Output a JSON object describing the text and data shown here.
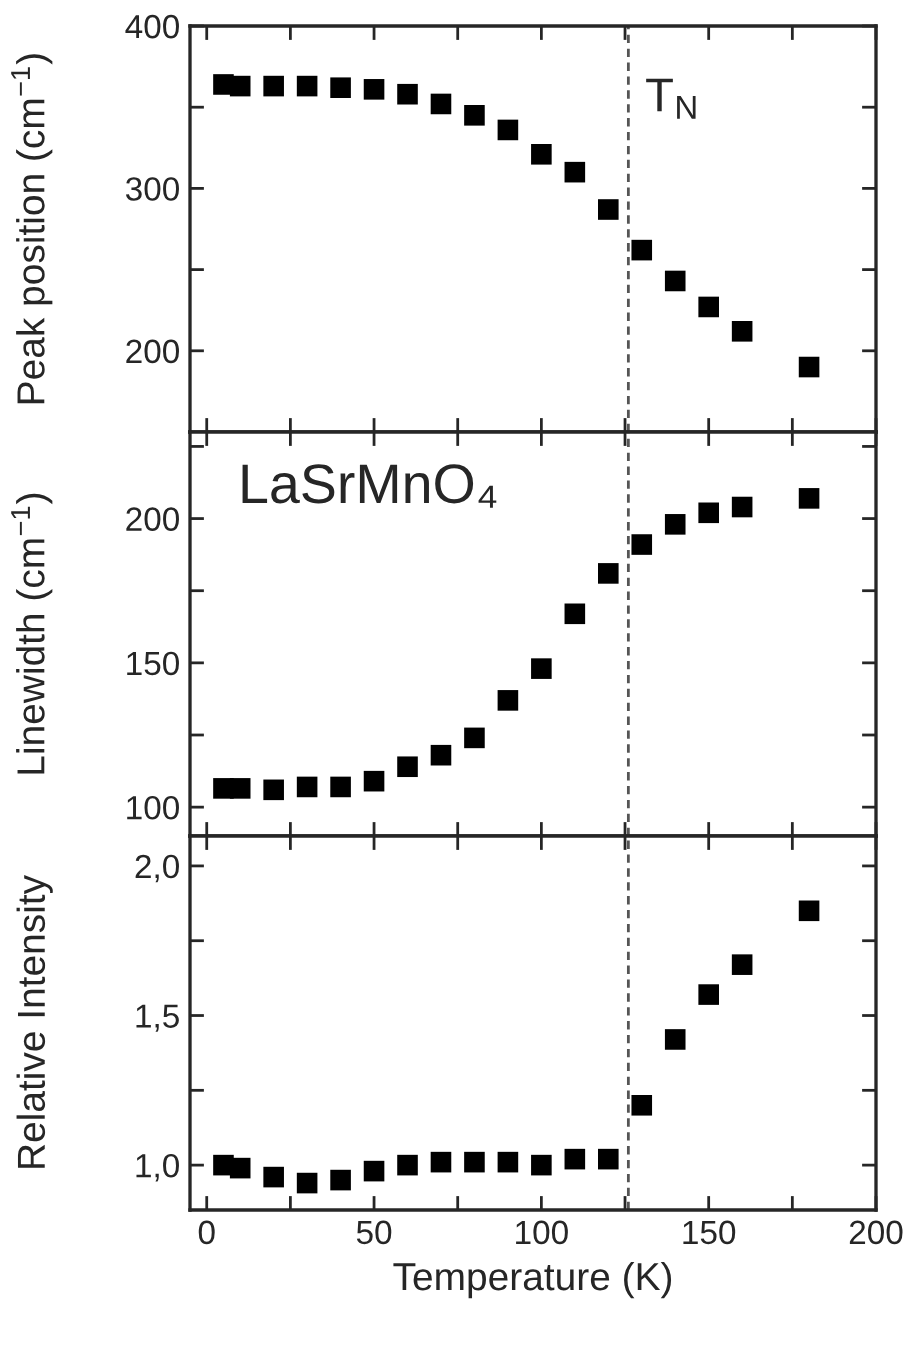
{
  "chart_data": [
    {
      "type": "scatter",
      "ylabel": "Peak position (cm$^{−1}$)",
      "marker": "square",
      "grid": false,
      "tick_labels": "y",
      "x": [
        5,
        10,
        20,
        30,
        40,
        50,
        60,
        70,
        80,
        90,
        100,
        110,
        120,
        130,
        140,
        150,
        160,
        180
      ],
      "series": [
        {
          "color": "#000000",
          "values": [
            364,
            363,
            363,
            363,
            362,
            361,
            358,
            352,
            345,
            336,
            321,
            310,
            287,
            262,
            243,
            227,
            212,
            190
          ]
        }
      ],
      "xlim": [
        -5,
        200
      ],
      "xticks": [
        {
          "value": 0,
          "label": null
        },
        {
          "value": 25,
          "label": null
        },
        {
          "value": 50,
          "label": null
        },
        {
          "value": 75,
          "label": null
        },
        {
          "value": 100,
          "label": null
        },
        {
          "value": 125,
          "label": null
        },
        {
          "value": 150,
          "label": null
        },
        {
          "value": 175,
          "label": null
        },
        {
          "value": 200,
          "label": null
        }
      ],
      "ylim": [
        150,
        400
      ],
      "yticks": [
        200,
        {
          "value": 250,
          "label": null
        },
        300,
        {
          "value": 350,
          "label": null
        },
        400
      ],
      "ref_lines": [
        {
          "axis": "x",
          "value": 126,
          "label": "T$_{N}$",
          "color": "#555555",
          "line_style": "dashed"
        }
      ]
    },
    {
      "type": "scatter",
      "ylabel": "Linewidth (cm$^{−1}$)",
      "marker": "square",
      "grid": false,
      "tick_labels": "y",
      "annotations": [
        "LaSrMnO₄"
      ],
      "x": [
        5,
        10,
        20,
        30,
        40,
        50,
        60,
        70,
        80,
        90,
        100,
        110,
        120,
        130,
        140,
        150,
        160,
        180
      ],
      "series": [
        {
          "color": "#000000",
          "values": [
            106.5,
            106.5,
            106,
            107,
            107,
            109,
            114,
            118,
            124,
            137,
            148,
            167,
            181,
            191,
            198,
            202,
            204,
            207
          ]
        }
      ],
      "xlim": [
        -5,
        200
      ],
      "xticks": [
        {
          "value": 0,
          "label": null
        },
        {
          "value": 25,
          "label": null
        },
        {
          "value": 50,
          "label": null
        },
        {
          "value": 75,
          "label": null
        },
        {
          "value": 100,
          "label": null
        },
        {
          "value": 125,
          "label": null
        },
        {
          "value": 150,
          "label": null
        },
        {
          "value": 175,
          "label": null
        },
        {
          "value": 200,
          "label": null
        }
      ],
      "ylim": [
        90,
        230
      ],
      "yticks": [
        100,
        {
          "value": 125,
          "label": null
        },
        150,
        {
          "value": 175,
          "label": null
        },
        200,
        {
          "value": 225,
          "label": null
        }
      ],
      "ref_lines": [
        {
          "axis": "x",
          "value": 126,
          "color": "#555555",
          "line_style": "dashed"
        }
      ]
    },
    {
      "type": "scatter",
      "xlabel": "Temperature (K)",
      "ylabel": "Relative Intensity",
      "marker": "square",
      "grid": false,
      "x": [
        5,
        10,
        20,
        30,
        40,
        50,
        60,
        70,
        80,
        90,
        100,
        110,
        120,
        130,
        140,
        150,
        160,
        180
      ],
      "series": [
        {
          "color": "#000000",
          "values": [
            1.0,
            0.99,
            0.96,
            0.94,
            0.95,
            0.98,
            1.0,
            1.01,
            1.01,
            1.01,
            1.0,
            1.02,
            1.02,
            1.2,
            1.42,
            1.57,
            1.67,
            1.85
          ]
        }
      ],
      "xlim": [
        -5,
        200
      ],
      "xticks": [
        {
          "value": 0,
          "label": "0"
        },
        {
          "value": 25,
          "label": null
        },
        {
          "value": 50,
          "label": "50"
        },
        {
          "value": 75,
          "label": null
        },
        {
          "value": 100,
          "label": "100"
        },
        {
          "value": 125,
          "label": null
        },
        {
          "value": 150,
          "label": "150"
        },
        {
          "value": 175,
          "label": null
        },
        {
          "value": 200,
          "label": "200"
        }
      ],
      "ylim": [
        0.85,
        2.1
      ],
      "yticks": [
        {
          "value": 1.0,
          "label": "1,0"
        },
        {
          "value": 1.25,
          "label": null
        },
        {
          "value": 1.5,
          "label": "1,5"
        },
        {
          "value": 1.75,
          "label": null
        },
        {
          "value": 2.0,
          "label": "2,0"
        }
      ],
      "ref_lines": [
        {
          "axis": "x",
          "value": 126,
          "color": "#555555",
          "line_style": "dashed"
        }
      ]
    }
  ]
}
